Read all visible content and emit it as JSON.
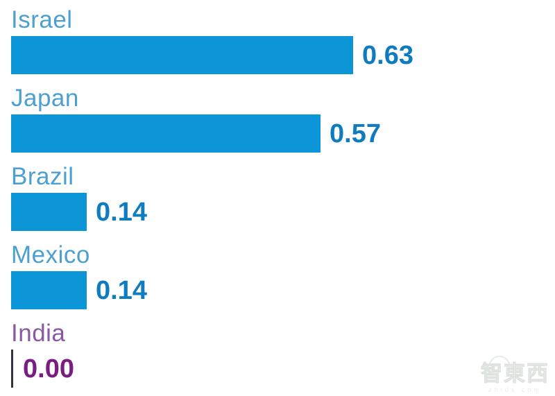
{
  "chart_data": {
    "type": "bar",
    "orientation": "horizontal",
    "title": "",
    "xlabel": "",
    "ylabel": "",
    "categories": [
      "Israel",
      "Japan",
      "Brazil",
      "Mexico",
      "India"
    ],
    "values": [
      0.63,
      0.57,
      0.14,
      0.14,
      0.0
    ],
    "value_labels": [
      "0.63",
      "0.57",
      "0.14",
      "0.14",
      "0.00"
    ],
    "xlim": [
      0,
      0.65
    ],
    "grid": false,
    "legend": false,
    "colors": {
      "bar": "#0c96d8",
      "category_label": "#4c9fd1",
      "value_label": "#0e7cbe",
      "india_category_label": "#8b59a3",
      "india_value_label": "#7a1d82",
      "zero_tick": "#37333c"
    }
  },
  "watermark": {
    "brand": "智東西",
    "domain": "zhidx.com"
  }
}
